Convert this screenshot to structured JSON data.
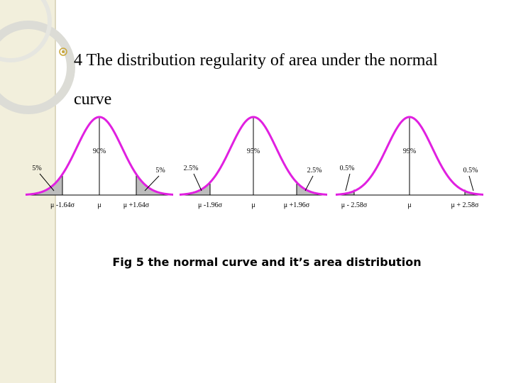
{
  "slide": {
    "heading": "4 The distribution regularity of area under the normal curve",
    "figures": [
      {
        "center": "90%",
        "left_tail": "5%",
        "right_tail": "5%",
        "left_label": "μ -1.64σ",
        "mid_label": "μ",
        "right_label": "μ +1.64σ"
      },
      {
        "center": "95%",
        "left_tail": "2.5%",
        "right_tail": "2.5%",
        "left_label": "μ -1.96σ",
        "mid_label": "μ",
        "right_label": "μ +1.96σ"
      },
      {
        "center": "99%",
        "left_tail": "0.5%",
        "right_tail": "0.5%",
        "left_label": "μ - 2.58σ",
        "mid_label": "μ",
        "right_label": "μ + 2.58σ"
      }
    ],
    "caption": "Fig 5  the normal curve and it’s area distribution"
  }
}
